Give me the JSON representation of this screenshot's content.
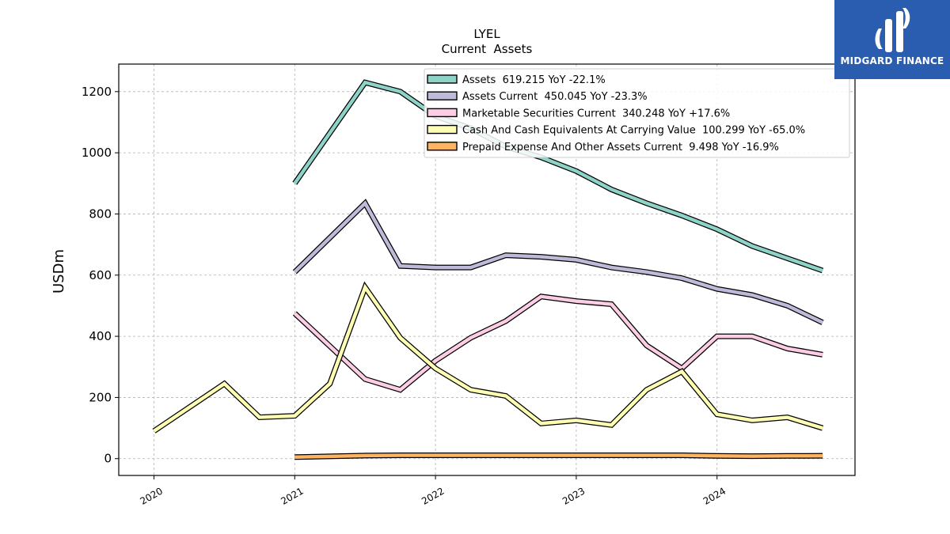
{
  "brand": {
    "name": "MIDGARD FINANCE",
    "color": "#2a5db0"
  },
  "chart_data": {
    "type": "line",
    "title": "LYEL",
    "subtitle": "Current  Assets",
    "ylabel": "USDm",
    "xlabel": "",
    "xlim": [
      2019.75,
      2024.98
    ],
    "ylim": [
      -55,
      1290
    ],
    "x_ticks": [
      2020,
      2021,
      2022,
      2023,
      2024
    ],
    "x_tick_labels": [
      "2020",
      "2021",
      "2022",
      "2023",
      "2024"
    ],
    "y_ticks": [
      0,
      200,
      400,
      600,
      800,
      1000,
      1200
    ],
    "y_tick_labels": [
      "0",
      "200",
      "400",
      "600",
      "800",
      "1000",
      "1200"
    ],
    "grid": true,
    "legend_position": "top-right",
    "series": [
      {
        "name": "Assets",
        "legend_label": "Assets  619.215 YoY -22.1%",
        "color": "#8dd3c7",
        "x": [
          2021.0,
          2021.5,
          2021.75,
          2022.0,
          2022.25,
          2022.5,
          2022.75,
          2023.0,
          2023.25,
          2023.5,
          2023.75,
          2024.0,
          2024.25,
          2024.5,
          2024.75
        ],
        "y": [
          900,
          1230,
          1200,
          1120,
          1080,
          1020,
          985,
          940,
          880,
          835,
          795,
          750,
          695,
          655,
          615
        ]
      },
      {
        "name": "Assets Current",
        "legend_label": "Assets Current  450.045 YoY -23.3%",
        "color": "#bebada",
        "x": [
          2021.0,
          2021.5,
          2021.75,
          2022.0,
          2022.25,
          2022.5,
          2022.75,
          2023.0,
          2023.25,
          2023.5,
          2023.75,
          2024.0,
          2024.25,
          2024.5,
          2024.75
        ],
        "y": [
          610,
          835,
          630,
          625,
          625,
          665,
          660,
          650,
          625,
          610,
          590,
          555,
          535,
          500,
          445
        ]
      },
      {
        "name": "Marketable Securities Current",
        "legend_label": "Marketable Securities Current  340.248 YoY +17.6%",
        "color": "#fccde5",
        "x": [
          2021.0,
          2021.5,
          2021.75,
          2022.0,
          2022.25,
          2022.5,
          2022.75,
          2023.0,
          2023.25,
          2023.5,
          2023.75,
          2024.0,
          2024.25,
          2024.5,
          2024.75
        ],
        "y": [
          475,
          260,
          225,
          320,
          395,
          450,
          530,
          515,
          505,
          370,
          295,
          400,
          400,
          360,
          340
        ]
      },
      {
        "name": "Cash And Cash Equivalents At Carrying Value",
        "legend_label": "Cash And Cash Equivalents At Carrying Value  100.299 YoY -65.0%",
        "color": "#ffffb3",
        "x": [
          2020.0,
          2020.5,
          2020.75,
          2021.0,
          2021.25,
          2021.5,
          2021.75,
          2022.0,
          2022.25,
          2022.5,
          2022.75,
          2023.0,
          2023.25,
          2023.5,
          2023.75,
          2024.0,
          2024.25,
          2024.5,
          2024.75
        ],
        "y": [
          90,
          245,
          135,
          140,
          245,
          560,
          395,
          295,
          225,
          205,
          115,
          125,
          110,
          225,
          285,
          145,
          125,
          135,
          100
        ]
      },
      {
        "name": "Prepaid Expense And Other Assets Current",
        "legend_label": "Prepaid Expense And Other Assets Current  9.498 YoY -16.9%",
        "color": "#fdb462",
        "x": [
          2021.0,
          2021.5,
          2021.75,
          2022.0,
          2022.25,
          2022.5,
          2022.75,
          2023.0,
          2023.25,
          2023.5,
          2023.75,
          2024.0,
          2024.25,
          2024.5,
          2024.75
        ],
        "y": [
          5,
          10,
          11,
          11,
          11,
          11,
          11,
          11,
          11,
          11,
          11,
          9,
          8,
          9,
          9.5
        ]
      }
    ]
  }
}
